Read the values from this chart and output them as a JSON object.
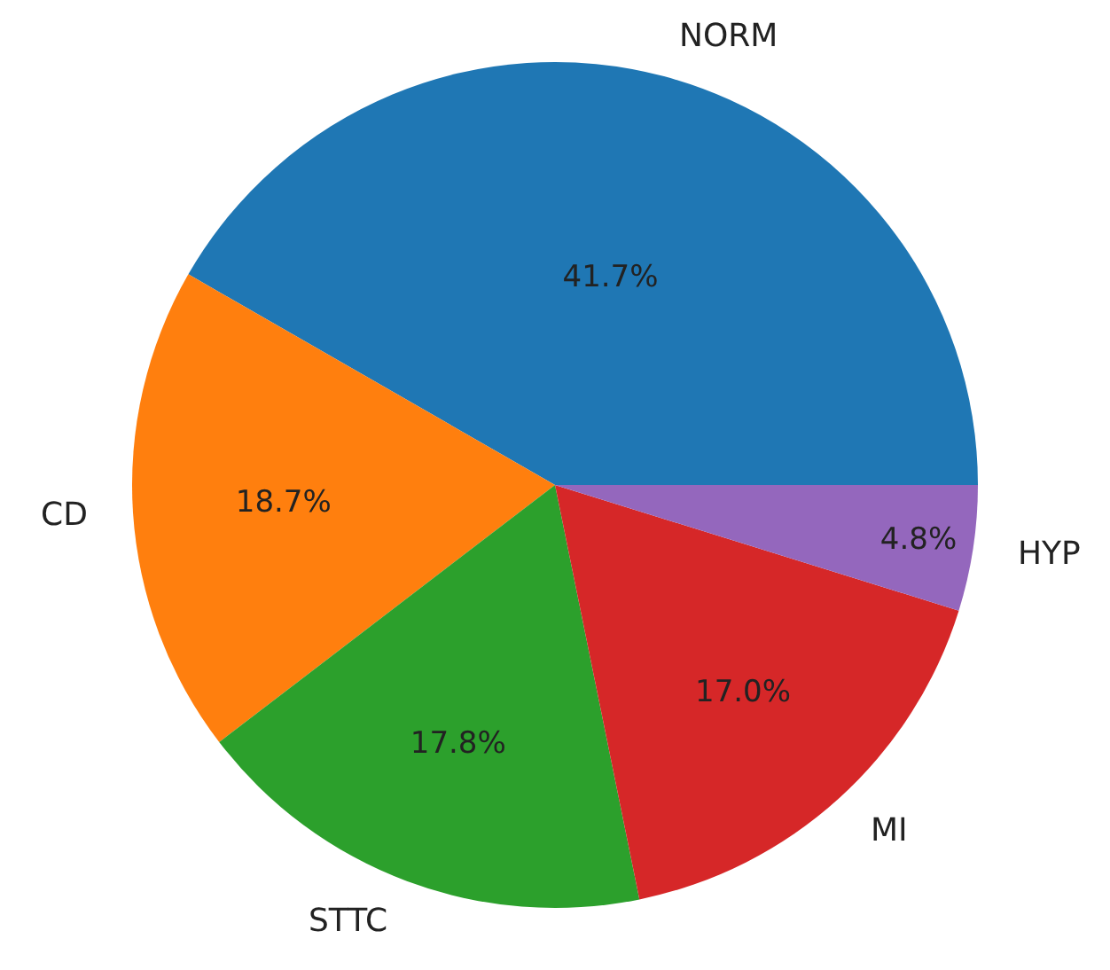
{
  "chart_data": {
    "type": "pie",
    "categories": [
      "NORM",
      "CD",
      "STTC",
      "MI",
      "HYP"
    ],
    "values": [
      41.7,
      18.7,
      17.8,
      17.0,
      4.8
    ],
    "value_labels": [
      "41.7%",
      "18.7%",
      "17.8%",
      "17.0%",
      "4.8%"
    ],
    "colors": [
      "#1f77b4",
      "#ff7f0e",
      "#2ca02c",
      "#d62728",
      "#9467bd"
    ],
    "legend": false
  }
}
